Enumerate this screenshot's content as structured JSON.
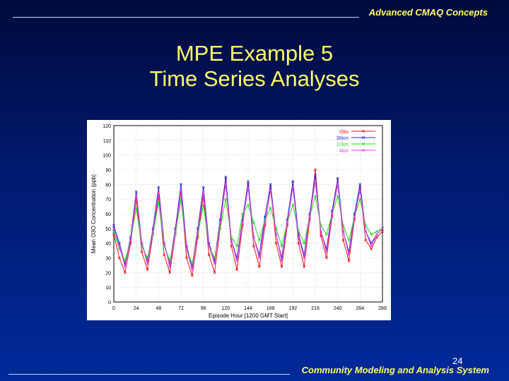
{
  "header": {
    "text": "Advanced CMAQ Concepts"
  },
  "title": {
    "line1": "MPE Example 5",
    "line2": "Time Series Analyses"
  },
  "page_number": "24",
  "footer": {
    "text": "Community Modeling and Analysis System"
  },
  "colors": {
    "title": "#ffff66",
    "obs": "#e8141e",
    "c36km": "#2a2ad2",
    "c12km": "#22d822",
    "c4km": "#e23ce2"
  },
  "chart_data": {
    "type": "line",
    "xlabel": "Episode Hour [1200 GMT Start]",
    "ylabel": "Mean O3O Concentration (ppb)",
    "xlim": [
      0,
      288
    ],
    "ylim": [
      0,
      120
    ],
    "xticks": [
      0,
      24,
      48,
      72,
      96,
      120,
      144,
      168,
      192,
      216,
      240,
      264,
      288
    ],
    "xtick_labels": [
      "0",
      "24",
      "48",
      "72",
      "96",
      "120",
      "144",
      "168",
      "192",
      "216",
      "240",
      "264",
      "288"
    ],
    "yticks": [
      0,
      10,
      20,
      30,
      40,
      50,
      60,
      70,
      80,
      90,
      100,
      110,
      120
    ],
    "ytick_labels": [
      "0",
      "10",
      "20",
      "30",
      "40",
      "50",
      "60",
      "70",
      "80",
      "90",
      "100",
      "110",
      "120"
    ],
    "grid": true,
    "legend_position": "top-right",
    "x": [
      0,
      6,
      12,
      18,
      24,
      30,
      36,
      42,
      48,
      54,
      60,
      66,
      72,
      78,
      84,
      90,
      96,
      102,
      108,
      114,
      120,
      126,
      132,
      138,
      144,
      150,
      156,
      162,
      168,
      174,
      180,
      186,
      192,
      198,
      204,
      210,
      216,
      222,
      228,
      234,
      240,
      246,
      252,
      258,
      264,
      270,
      276,
      282,
      288
    ],
    "series": [
      {
        "name": "Obs",
        "marker": "x",
        "color": "#e8141e",
        "values": [
          46,
          30,
          20,
          40,
          70,
          34,
          22,
          46,
          72,
          32,
          20,
          46,
          75,
          30,
          18,
          44,
          72,
          32,
          20,
          50,
          84,
          38,
          22,
          52,
          80,
          38,
          24,
          52,
          78,
          40,
          24,
          52,
          82,
          40,
          24,
          56,
          90,
          45,
          30,
          58,
          84,
          42,
          28,
          56,
          78,
          42,
          36,
          44,
          48
        ]
      },
      {
        "name": "36km",
        "marker": "x",
        "color": "#2a2ad2",
        "values": [
          52,
          40,
          26,
          44,
          75,
          40,
          28,
          50,
          78,
          40,
          26,
          50,
          80,
          38,
          24,
          50,
          78,
          40,
          28,
          56,
          85,
          42,
          30,
          56,
          82,
          44,
          32,
          58,
          80,
          46,
          30,
          56,
          82,
          46,
          32,
          60,
          86,
          48,
          36,
          62,
          84,
          48,
          34,
          60,
          80,
          48,
          40,
          46,
          50
        ]
      },
      {
        "name": "12km",
        "marker": "x",
        "color": "#22d822",
        "values": [
          48,
          36,
          28,
          42,
          64,
          38,
          30,
          46,
          68,
          38,
          28,
          46,
          70,
          36,
          26,
          46,
          66,
          38,
          30,
          50,
          70,
          44,
          38,
          60,
          66,
          54,
          42,
          56,
          64,
          50,
          38,
          54,
          66,
          48,
          40,
          58,
          72,
          52,
          46,
          60,
          72,
          52,
          42,
          58,
          70,
          52,
          46,
          48,
          50
        ]
      },
      {
        "name": "4km",
        "marker": "x",
        "color": "#e23ce2",
        "values": [
          50,
          38,
          24,
          42,
          72,
          40,
          26,
          48,
          74,
          40,
          24,
          48,
          76,
          36,
          22,
          48,
          74,
          38,
          26,
          54,
          80,
          42,
          28,
          54,
          78,
          44,
          30,
          54,
          76,
          46,
          28,
          54,
          78,
          44,
          30,
          58,
          82,
          48,
          34,
          60,
          80,
          48,
          32,
          58,
          76,
          48,
          38,
          46,
          50
        ]
      }
    ]
  }
}
